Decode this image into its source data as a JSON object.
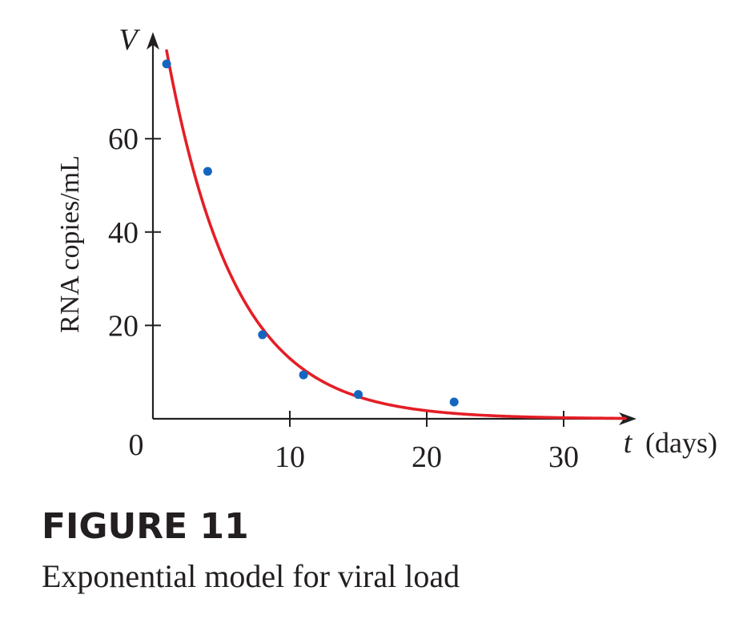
{
  "figure": {
    "label": "FIGURE 11",
    "caption": "Exponential model for viral load"
  },
  "chart_data": {
    "type": "scatter",
    "title": "",
    "ylabel": "RNA copies/mL",
    "y_var": "V",
    "x_var": "t",
    "x_unit": "(days)",
    "xlim": [
      0,
      35
    ],
    "ylim": [
      0,
      78
    ],
    "x_ticks": [
      10,
      20,
      30
    ],
    "x_tick_labels": [
      "10",
      "20",
      "30"
    ],
    "y_ticks": [
      20,
      40,
      60
    ],
    "y_tick_labels": [
      "20",
      "40",
      "60"
    ],
    "origin_label": "0",
    "grid": false,
    "legend": "none",
    "points": {
      "color": "#1565c0",
      "x": [
        1,
        4,
        8,
        11,
        15,
        22
      ],
      "y": [
        76,
        53,
        18,
        9.4,
        5.2,
        3.6
      ]
    },
    "fit_curve": {
      "color": "#e41e26",
      "model": "exponential",
      "a": 96.39,
      "b": 0.818,
      "x_start": 1,
      "x_end": 34.5
    },
    "axis_color": "#231f20"
  }
}
